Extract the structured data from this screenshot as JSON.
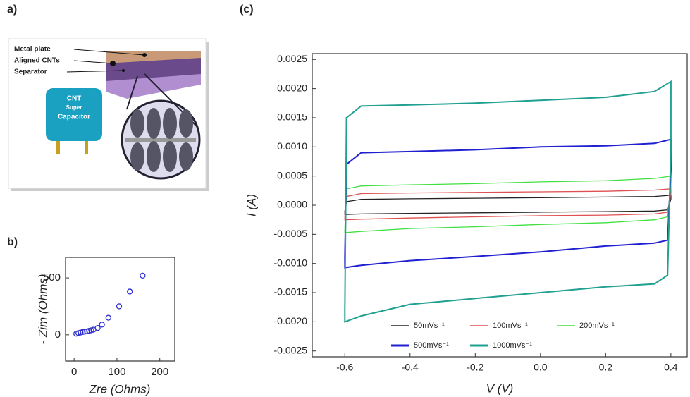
{
  "diagram": {
    "panel_label": "a)",
    "labels": [
      "Metal plate",
      "Aligned CNTs",
      "Separator"
    ],
    "device": [
      "CNT",
      "Super",
      "Capacitor"
    ]
  },
  "chart_data": [
    {
      "type": "scatter",
      "panel_label": "b)",
      "xlabel": "Zre (Ohms)",
      "ylabel": "- Zim (Ohms)",
      "x": [
        5,
        10,
        15,
        20,
        25,
        30,
        35,
        40,
        45,
        55,
        65,
        80,
        105,
        130,
        160
      ],
      "values": [
        10,
        15,
        20,
        25,
        28,
        30,
        35,
        40,
        45,
        60,
        90,
        150,
        250,
        380,
        520
      ],
      "color": "#3030d0",
      "xlim": [
        -20,
        235
      ],
      "ylim": [
        -230,
        680
      ],
      "xticks": [
        0,
        100,
        200
      ],
      "yticks": [
        0,
        500
      ]
    },
    {
      "type": "line",
      "panel_label": "(c)",
      "xlabel": "V (V)",
      "ylabel": "I (A)",
      "x": [
        -0.6,
        -0.595,
        -0.55,
        -0.4,
        -0.2,
        0,
        0.2,
        0.35,
        0.4,
        0.4,
        0.39,
        0.35,
        0.2,
        0,
        -0.2,
        -0.4,
        -0.55,
        -0.6,
        -0.6
      ],
      "series": [
        {
          "name": "50mVs⁻¹",
          "color": "#222222",
          "values": [
            -0.0001,
            6e-05,
            0.0001,
            0.00011,
            0.00012,
            0.00013,
            0.00014,
            0.00015,
            0.00017,
            0.0001,
            -8e-05,
            -0.0001,
            -0.00011,
            -0.00012,
            -0.00013,
            -0.00014,
            -0.00015,
            -0.00016,
            -0.0001
          ]
        },
        {
          "name": "100mVs⁻¹",
          "color": "#e05050",
          "values": [
            -0.0002,
            0.00015,
            0.0002,
            0.00021,
            0.00022,
            0.00023,
            0.00024,
            0.00026,
            0.00028,
            0.0002,
            -0.00012,
            -0.00015,
            -0.00017,
            -0.00018,
            -0.0002,
            -0.00022,
            -0.00024,
            -0.00025,
            -0.0002
          ]
        },
        {
          "name": "200mVs⁻¹",
          "color": "#40e040",
          "values": [
            -0.0004,
            0.00028,
            0.00033,
            0.00035,
            0.00037,
            0.0004,
            0.00042,
            0.00046,
            0.0005,
            0.0003,
            -0.0002,
            -0.00025,
            -0.0003,
            -0.00033,
            -0.00037,
            -0.0004,
            -0.00045,
            -0.00047,
            -0.0004
          ]
        },
        {
          "name": "500mVs⁻¹",
          "color": "#2020d0",
          "values": [
            -0.0009,
            0.0007,
            0.0009,
            0.00092,
            0.00095,
            0.001,
            0.00102,
            0.00106,
            0.00113,
            0.0006,
            -0.0006,
            -0.00065,
            -0.0007,
            -0.0008,
            -0.00088,
            -0.00095,
            -0.00103,
            -0.00107,
            -0.0009
          ]
        },
        {
          "name": "1000mVs⁻¹",
          "color": "#20a090",
          "values": [
            -0.0018,
            0.0015,
            0.0017,
            0.00172,
            0.00175,
            0.0018,
            0.00185,
            0.00195,
            0.00212,
            0.001,
            -0.0012,
            -0.00135,
            -0.0014,
            -0.0015,
            -0.0016,
            -0.0017,
            -0.0019,
            -0.002,
            -0.0018
          ]
        }
      ],
      "xlim": [
        -0.7,
        0.45
      ],
      "ylim": [
        -0.0026,
        0.0026
      ],
      "xticks": [
        -0.6,
        -0.4,
        -0.2,
        {
          "value": 0,
          "label": "0.0"
        },
        0.2,
        0.4
      ],
      "yticks": [
        {
          "value": -0.0025,
          "label": "-0.0025"
        },
        {
          "value": -0.002,
          "label": "-0.0020"
        },
        {
          "value": -0.0015,
          "label": "-0.0015"
        },
        {
          "value": -0.001,
          "label": "-0.0010"
        },
        {
          "value": -0.0005,
          "label": "-0.0005"
        },
        {
          "value": 0,
          "label": "0.0000"
        },
        {
          "value": 0.0005,
          "label": "0.0005"
        },
        {
          "value": 0.001,
          "label": "0.0010"
        },
        {
          "value": 0.0015,
          "label": "0.0015"
        },
        {
          "value": 0.002,
          "label": "0.0020"
        },
        {
          "value": 0.0025,
          "label": "0.0025"
        }
      ],
      "legend": "lower center"
    }
  ]
}
